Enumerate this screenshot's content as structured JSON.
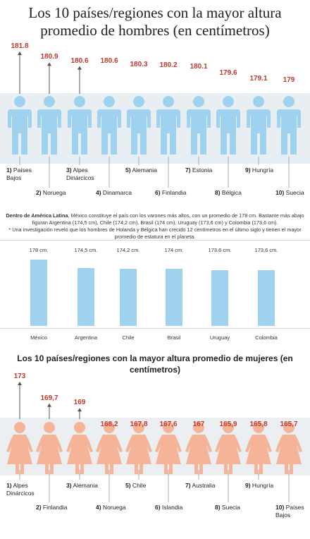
{
  "title": "Los 10 países/regiones con la mayor altura promedio de hombres (en centímetros)",
  "men": {
    "values": [
      181.8,
      180.9,
      180.6,
      180.6,
      180.3,
      180.2,
      180.1,
      179.6,
      179.1,
      179
    ],
    "labels": [
      "181.8",
      "180.9",
      "180.6",
      "180.6",
      "180.3",
      "180.2",
      "180.1",
      "179.6",
      "179.1",
      "179"
    ],
    "countries": [
      {
        "num": "1)",
        "name": "Países",
        "name2": "Bajos"
      },
      {
        "num": "2)",
        "name": "Noruega",
        "name2": ""
      },
      {
        "num": "3)",
        "name": "Alpes",
        "name2": "Dinárcicos"
      },
      {
        "num": "4)",
        "name": "Dinamarca",
        "name2": ""
      },
      {
        "num": "5)",
        "name": "Alemania",
        "name2": ""
      },
      {
        "num": "6)",
        "name": "Finlandia",
        "name2": ""
      },
      {
        "num": "7)",
        "name": "Estonia",
        "name2": ""
      },
      {
        "num": "8)",
        "name": "Bélgica",
        "name2": ""
      },
      {
        "num": "9)",
        "name": "Hungría",
        "name2": ""
      },
      {
        "num": "10)",
        "name": "Suecia",
        "name2": ""
      }
    ]
  },
  "note": {
    "lead": "Dentro de América Latina",
    "text": ", México constituye el país con los varones más altos, con un promedio de 178 cm. Bastante más abajo figuran Argentina (174,5 cm), Chile (174,2 cm), Brasil (174 cm), Uruguay (173,6 cm) y Colombia (173,6 cm).",
    "footnote": "* Una investigación reveló que los hombres de Holanda y Bélgica han crecido 12 centímetros en el último siglo y tienen el mayor promedio de estatura en el planeta."
  },
  "latam": {
    "categories": [
      "México",
      "Argentina",
      "Chile",
      "Brasil",
      "Uruguay",
      "Colombia"
    ],
    "labels": [
      "178 cm.",
      "174,5 cm.",
      "174,2 cm.",
      "174 cm.",
      "173,6 cm.",
      "173,6 cm."
    ],
    "values": [
      178,
      174.5,
      174.2,
      174,
      173.6,
      173.6
    ]
  },
  "women_title": "Los 10 países/regiones con la mayor altura promedio de mujeres (en centímetros)",
  "women": {
    "values": [
      173,
      169.7,
      169,
      168.2,
      167.8,
      167.6,
      167,
      165.9,
      165.8,
      165.7
    ],
    "labels": [
      "173",
      "169,7",
      "169",
      "168,2",
      "167,8",
      "167,6",
      "167",
      "165,9",
      "165,8",
      "165,7"
    ],
    "countries": [
      {
        "num": "1)",
        "name": "Alpes",
        "name2": "Dinárcicos"
      },
      {
        "num": "2)",
        "name": "Finlandia",
        "name2": ""
      },
      {
        "num": "3)",
        "name": "Alemania",
        "name2": ""
      },
      {
        "num": "4)",
        "name": "Noruega",
        "name2": ""
      },
      {
        "num": "5)",
        "name": "Chile",
        "name2": ""
      },
      {
        "num": "6)",
        "name": "Islandia",
        "name2": ""
      },
      {
        "num": "7)",
        "name": "Australia",
        "name2": ""
      },
      {
        "num": "8)",
        "name": "Suecia",
        "name2": ""
      },
      {
        "num": "9)",
        "name": "Hungría",
        "name2": ""
      },
      {
        "num": "10)",
        "name": "Países",
        "name2": "Bajos"
      }
    ]
  },
  "colors": {
    "men": "#9fd2ef",
    "men_band": "#e9eef3",
    "women": "#f5b498",
    "women_band": "#eceff2",
    "value": "#c0392b",
    "arrow": "#555555"
  },
  "chart_data": [
    {
      "type": "bar",
      "title": "Los 10 países/regiones con la mayor altura promedio de hombres (en centímetros)",
      "categories": [
        "Países Bajos",
        "Noruega",
        "Alpes Dinárcicos",
        "Dinamarca",
        "Alemania",
        "Finlandia",
        "Estonia",
        "Bélgica",
        "Hungría",
        "Suecia"
      ],
      "values": [
        181.8,
        180.9,
        180.6,
        180.6,
        180.3,
        180.2,
        180.1,
        179.6,
        179.1,
        179
      ]
    },
    {
      "type": "bar",
      "categories": [
        "México",
        "Argentina",
        "Chile",
        "Brasil",
        "Uruguay",
        "Colombia"
      ],
      "values": [
        178,
        174.5,
        174.2,
        174,
        173.6,
        173.6
      ]
    },
    {
      "type": "bar",
      "title": "Los 10 países/regiones con la mayor altura promedio de mujeres (en centímetros)",
      "categories": [
        "Alpes Dinárcicos",
        "Finlandia",
        "Alemania",
        "Noruega",
        "Chile",
        "Islandia",
        "Australia",
        "Suecia",
        "Hungría",
        "Países Bajos"
      ],
      "values": [
        173,
        169.7,
        169,
        168.2,
        167.8,
        167.6,
        167,
        165.9,
        165.8,
        165.7
      ]
    }
  ]
}
